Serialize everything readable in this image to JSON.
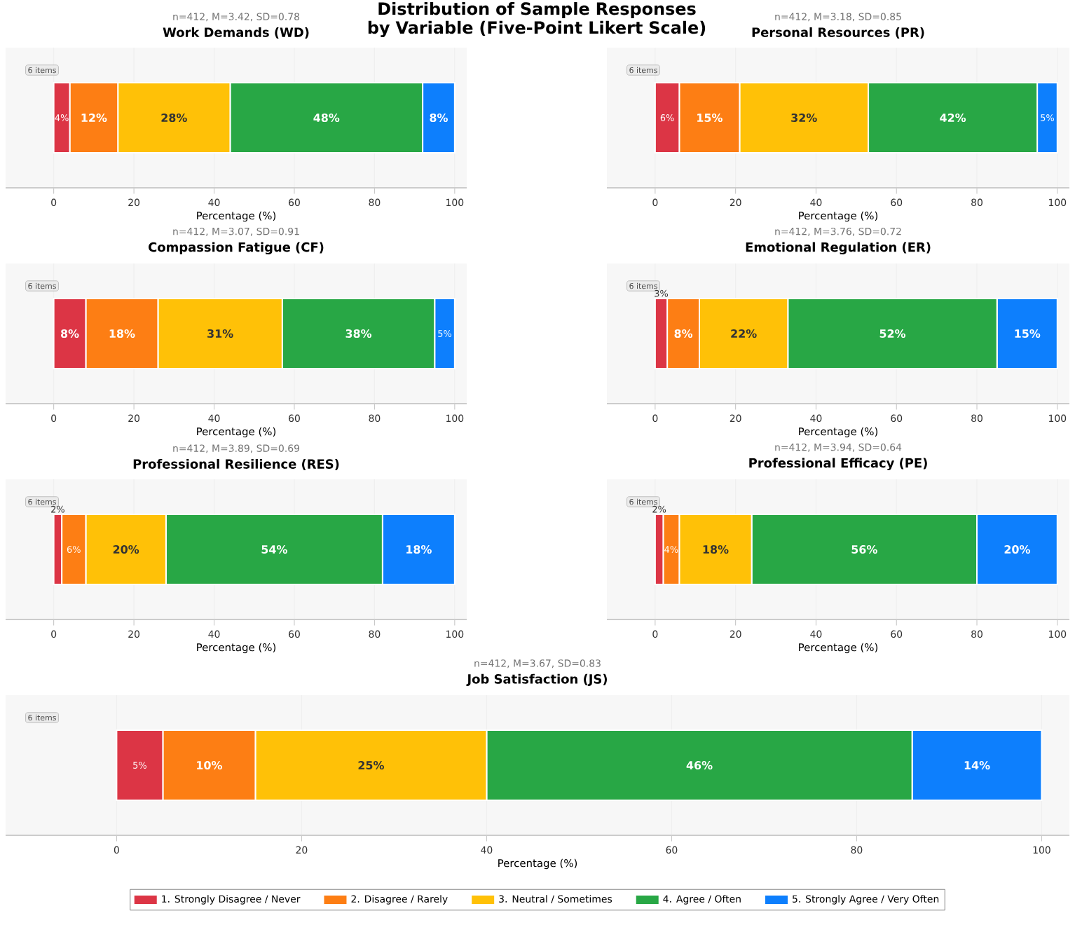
{
  "chart_data": [
    {
      "type": "bar",
      "orientation": "horizontal",
      "stacked": true,
      "title": "Work Demands (WD)",
      "subtitle": "n=412, M=3.42, SD=0.78",
      "xlabel": "Percentage (%)",
      "annotations": [
        "6 items",
        "Distribution of Sample Responses by Variable (Five-Point Likert Scale)"
      ],
      "categories": [
        null
      ],
      "xlim": [
        -12,
        103
      ],
      "xticks": [
        0,
        20,
        40,
        60,
        80,
        100
      ],
      "grid": "x",
      "series": [
        {
          "color": "#dc3545",
          "values": [
            4
          ],
          "value_labels": [
            "4%"
          ]
        },
        {
          "color": "#fd7e14",
          "values": [
            12
          ],
          "value_labels": [
            "12%"
          ]
        },
        {
          "color": "#ffc107",
          "values": [
            28
          ],
          "value_labels": [
            "28%"
          ]
        },
        {
          "color": "#28a745",
          "values": [
            48
          ],
          "value_labels": [
            "48%"
          ]
        },
        {
          "color": "#0d7ffd",
          "values": [
            8
          ],
          "value_labels": [
            "8%"
          ]
        }
      ]
    },
    {
      "type": "bar",
      "orientation": "horizontal",
      "stacked": true,
      "title": "Personal Resources (PR)",
      "subtitle": "n=412, M=3.18, SD=0.85",
      "xlabel": "Percentage (%)",
      "annotations": [
        "6 items"
      ],
      "categories": [
        null
      ],
      "xlim": [
        -12,
        103
      ],
      "xticks": [
        0,
        20,
        40,
        60,
        80,
        100
      ],
      "grid": "x",
      "series": [
        {
          "color": "#dc3545",
          "values": [
            6
          ],
          "value_labels": [
            "6%"
          ]
        },
        {
          "color": "#fd7e14",
          "values": [
            15
          ],
          "value_labels": [
            "15%"
          ]
        },
        {
          "color": "#ffc107",
          "values": [
            32
          ],
          "value_labels": [
            "32%"
          ]
        },
        {
          "color": "#28a745",
          "values": [
            42
          ],
          "value_labels": [
            "42%"
          ]
        },
        {
          "color": "#0d7ffd",
          "values": [
            5
          ],
          "value_labels": [
            "5%"
          ]
        }
      ]
    },
    {
      "type": "bar",
      "orientation": "horizontal",
      "stacked": true,
      "title": "Compassion Fatigue (CF)",
      "subtitle": "n=412, M=3.07, SD=0.91",
      "xlabel": "Percentage (%)",
      "annotations": [
        "6 items"
      ],
      "categories": [
        null
      ],
      "xlim": [
        -12,
        103
      ],
      "xticks": [
        0,
        20,
        40,
        60,
        80,
        100
      ],
      "grid": "x",
      "series": [
        {
          "color": "#dc3545",
          "values": [
            8
          ],
          "value_labels": [
            "8%"
          ]
        },
        {
          "color": "#fd7e14",
          "values": [
            18
          ],
          "value_labels": [
            "18%"
          ]
        },
        {
          "color": "#ffc107",
          "values": [
            31
          ],
          "value_labels": [
            "31%"
          ]
        },
        {
          "color": "#28a745",
          "values": [
            38
          ],
          "value_labels": [
            "38%"
          ]
        },
        {
          "color": "#0d7ffd",
          "values": [
            5
          ],
          "value_labels": [
            "5%"
          ]
        }
      ]
    },
    {
      "type": "bar",
      "orientation": "horizontal",
      "stacked": true,
      "title": "Emotional Regulation (ER)",
      "subtitle": "n=412, M=3.76, SD=0.72",
      "xlabel": "Percentage (%)",
      "annotations": [
        "6 items"
      ],
      "categories": [
        null
      ],
      "xlim": [
        -12,
        103
      ],
      "xticks": [
        0,
        20,
        40,
        60,
        80,
        100
      ],
      "grid": "x",
      "series": [
        {
          "color": "#dc3545",
          "values": [
            3
          ],
          "value_labels": [
            "3%"
          ]
        },
        {
          "color": "#fd7e14",
          "values": [
            8
          ],
          "value_labels": [
            "8%"
          ]
        },
        {
          "color": "#ffc107",
          "values": [
            22
          ],
          "value_labels": [
            "22%"
          ]
        },
        {
          "color": "#28a745",
          "values": [
            52
          ],
          "value_labels": [
            "52%"
          ]
        },
        {
          "color": "#0d7ffd",
          "values": [
            15
          ],
          "value_labels": [
            "15%"
          ]
        }
      ]
    },
    {
      "type": "bar",
      "orientation": "horizontal",
      "stacked": true,
      "title": "Professional Resilience (RES)",
      "subtitle": "n=412, M=3.89, SD=0.69",
      "xlabel": "Percentage (%)",
      "annotations": [
        "6 items"
      ],
      "categories": [
        null
      ],
      "xlim": [
        -12,
        103
      ],
      "xticks": [
        0,
        20,
        40,
        60,
        80,
        100
      ],
      "grid": "x",
      "series": [
        {
          "color": "#dc3545",
          "values": [
            2
          ],
          "value_labels": [
            "2%"
          ]
        },
        {
          "color": "#fd7e14",
          "values": [
            6
          ],
          "value_labels": [
            "6%"
          ]
        },
        {
          "color": "#ffc107",
          "values": [
            20
          ],
          "value_labels": [
            "20%"
          ]
        },
        {
          "color": "#28a745",
          "values": [
            54
          ],
          "value_labels": [
            "54%"
          ]
        },
        {
          "color": "#0d7ffd",
          "values": [
            18
          ],
          "value_labels": [
            "18%"
          ]
        }
      ]
    },
    {
      "type": "bar",
      "orientation": "horizontal",
      "stacked": true,
      "title": "Professional Efficacy (PE)",
      "subtitle": "n=412, M=3.94, SD=0.64",
      "xlabel": "Percentage (%)",
      "annotations": [
        "6 items"
      ],
      "categories": [
        null
      ],
      "xlim": [
        -12,
        103
      ],
      "xticks": [
        0,
        20,
        40,
        60,
        80,
        100
      ],
      "grid": "x",
      "series": [
        {
          "color": "#dc3545",
          "values": [
            2
          ],
          "value_labels": [
            "2%"
          ]
        },
        {
          "color": "#fd7e14",
          "values": [
            4
          ],
          "value_labels": [
            "4%"
          ]
        },
        {
          "color": "#ffc107",
          "values": [
            18
          ],
          "value_labels": [
            "18%"
          ]
        },
        {
          "color": "#28a745",
          "values": [
            56
          ],
          "value_labels": [
            "56%"
          ]
        },
        {
          "color": "#0d7ffd",
          "values": [
            20
          ],
          "value_labels": [
            "20%"
          ]
        }
      ]
    },
    {
      "type": "bar",
      "orientation": "horizontal",
      "stacked": true,
      "title": "Job Satisfaction (JS)",
      "subtitle": "n=412, M=3.67, SD=0.83",
      "xlabel": "Percentage (%)",
      "annotations": [
        "6 items"
      ],
      "categories": [
        null
      ],
      "xlim": [
        -12,
        103
      ],
      "xticks": [
        0,
        20,
        40,
        60,
        80,
        100
      ],
      "grid": "x",
      "legend": "bottom",
      "series": [
        {
          "name": "1. Strongly Disagree / Never",
          "color": "#dc3545",
          "values": [
            5
          ],
          "value_labels": [
            "5%"
          ]
        },
        {
          "name": "2. Disagree / Rarely",
          "color": "#fd7e14",
          "values": [
            10
          ],
          "value_labels": [
            "10%"
          ]
        },
        {
          "name": "3. Neutral / Sometimes",
          "color": "#ffc107",
          "values": [
            25
          ],
          "value_labels": [
            "25%"
          ]
        },
        {
          "name": "4. Agree / Often",
          "color": "#28a745",
          "values": [
            46
          ],
          "value_labels": [
            "46%"
          ]
        },
        {
          "name": "5. Strongly Agree / Very Often",
          "color": "#0d7ffd",
          "values": [
            14
          ],
          "value_labels": [
            "14%"
          ]
        }
      ]
    }
  ]
}
